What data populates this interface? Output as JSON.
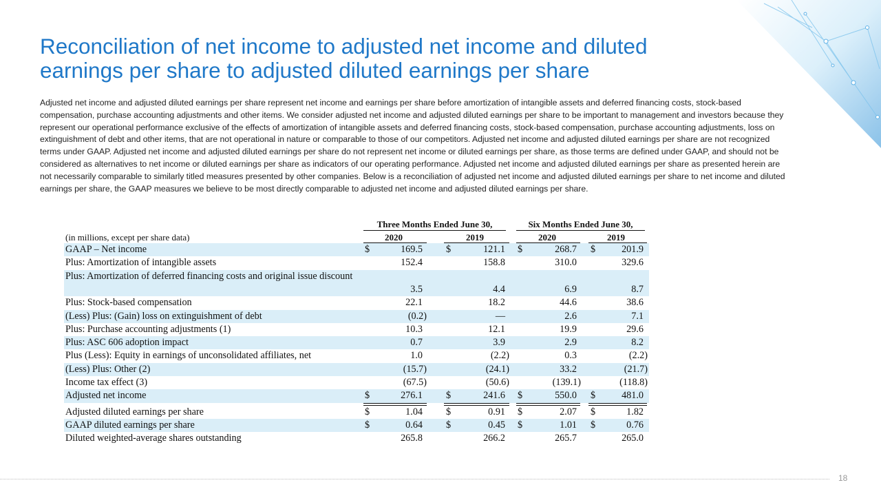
{
  "header": {
    "title": "Reconciliation of net income to adjusted net income and diluted earnings per share to adjusted diluted earnings per share",
    "page_number": "18"
  },
  "intro": "Adjusted net income and adjusted diluted earnings per share represent net income and earnings per share before amortization of intangible assets and deferred financing costs, stock-based compensation, purchase accounting adjustments and other items.  We consider adjusted net income and adjusted diluted earnings per share to be important to management and investors because they represent our operational performance exclusive of the effects of amortization of intangible assets and deferred financing costs, stock-based compensation, purchase accounting adjustments, loss on extinguishment of debt and other items, that are not operational in nature or comparable to those of our competitors.  Adjusted net income and adjusted diluted earnings per share are not recognized terms under GAAP.  Adjusted net income and adjusted diluted earnings per share do not represent net income or diluted earnings per share, as those terms are defined under GAAP, and should not be considered as alternatives to net income or diluted earnings per share as indicators of our operating performance.  Adjusted net income and adjusted diluted earnings per share as presented herein are not necessarily comparable to similarly titled measures presented by other companies.  Below is a reconciliation of adjusted net income and adjusted diluted earnings per share to net income and diluted earnings per share, the GAAP measures we believe to be most directly comparable to adjusted net income and adjusted diluted earnings per share.",
  "table": {
    "column_groups": [
      "Three Months Ended June 30,",
      "Six Months Ended June 30,"
    ],
    "units_note": "(in millions, except per share data)",
    "years": [
      "2020",
      "2019",
      "2020",
      "2019"
    ],
    "rows": [
      {
        "label": "GAAP – Net income",
        "currency": "$",
        "values": [
          "169.5",
          "121.1",
          "268.7",
          "201.9"
        ]
      },
      {
        "label": "Plus: Amortization of intangible assets",
        "values": [
          "152.4",
          "158.8",
          "310.0",
          "329.6"
        ]
      },
      {
        "label": "Plus: Amortization of deferred financing costs and original issue discount",
        "values": [
          "3.5",
          "4.4",
          "6.9",
          "8.7"
        ]
      },
      {
        "label": "Plus: Stock-based compensation",
        "values": [
          "22.1",
          "18.2",
          "44.6",
          "38.6"
        ]
      },
      {
        "label": "(Less) Plus: (Gain) loss on extinguishment of debt",
        "values": [
          "(0.2)",
          "—",
          "2.6",
          "7.1"
        ]
      },
      {
        "label": "Plus: Purchase accounting adjustments (1)",
        "values": [
          "10.3",
          "12.1",
          "19.9",
          "29.6"
        ]
      },
      {
        "label": "Plus: ASC 606 adoption impact",
        "values": [
          "0.7",
          "3.9",
          "2.9",
          "8.2"
        ]
      },
      {
        "label": "Plus (Less): Equity in earnings of unconsolidated affiliates, net",
        "values": [
          "1.0",
          "(2.2)",
          "0.3",
          "(2.2)"
        ]
      },
      {
        "label": "(Less) Plus: Other (2)",
        "values": [
          "(15.7)",
          "(24.1)",
          "33.2",
          "(21.7)"
        ]
      },
      {
        "label": "Income tax effect (3)",
        "values": [
          "(67.5)",
          "(50.6)",
          "(139.1)",
          "(118.8)"
        ]
      },
      {
        "label": "Adjusted net income",
        "currency": "$",
        "values": [
          "276.1",
          "241.6",
          "550.0",
          "481.0"
        ]
      },
      {
        "label": "Adjusted diluted earnings per share",
        "currency": "$",
        "values": [
          "1.04",
          "0.91",
          "2.07",
          "1.82"
        ]
      },
      {
        "label": "GAAP diluted earnings per share",
        "currency": "$",
        "values": [
          "0.64",
          "0.45",
          "1.01",
          "0.76"
        ]
      },
      {
        "label": "Diluted weighted-average shares outstanding",
        "values": [
          "265.8",
          "266.2",
          "265.7",
          "265.0"
        ]
      }
    ]
  }
}
